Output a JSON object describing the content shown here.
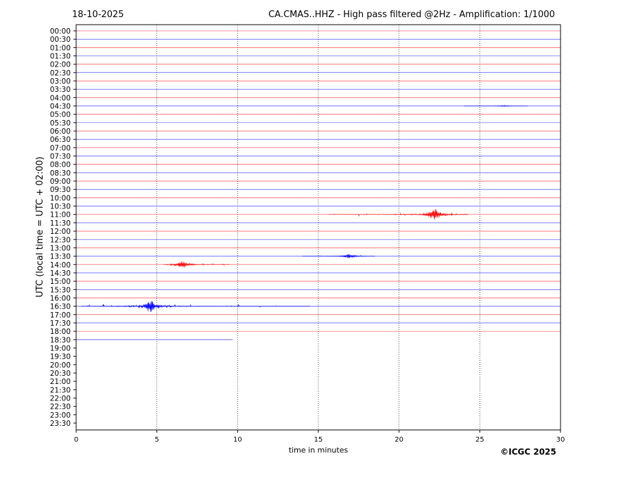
{
  "chart_data": {
    "type": "helicorder",
    "date": "18-10-2025",
    "title": "CA.CMAS..HHZ - High pass filtered @2Hz - Amplification: 1/1000",
    "xlabel": "time in minutes",
    "ylabel": "UTC (local time = UTC + 02:00)",
    "credit": "©ICGC 2025",
    "xlim": [
      0,
      30
    ],
    "xticks": [
      0,
      5,
      10,
      15,
      20,
      25,
      30
    ],
    "grid": true,
    "colors": [
      "#ff0000",
      "#0000ff"
    ],
    "rows": [
      "00:00",
      "00:30",
      "01:00",
      "01:30",
      "02:00",
      "02:30",
      "03:00",
      "03:30",
      "04:00",
      "04:30",
      "05:00",
      "05:30",
      "06:00",
      "06:30",
      "07:00",
      "07:30",
      "08:00",
      "08:30",
      "09:00",
      "09:30",
      "10:00",
      "10:30",
      "11:00",
      "11:30",
      "12:00",
      "12:30",
      "13:00",
      "13:30",
      "14:00",
      "14:30",
      "15:00",
      "15:30",
      "16:00",
      "16:30",
      "17:00",
      "17:30",
      "18:00",
      "18:30",
      "19:00",
      "19:30",
      "20:00",
      "20:30",
      "21:00",
      "21:30",
      "22:00",
      "22:30",
      "23:00",
      "23:30"
    ],
    "last_row": 37,
    "last_minute": 9.7,
    "events": [
      {
        "row": 9,
        "start": 24,
        "end": 28,
        "peak": 26.5,
        "amplitude": 0.08
      },
      {
        "row": 22,
        "start": 15.6,
        "end": 24.3,
        "peak": 22.2,
        "amplitude": 0.7
      },
      {
        "row": 27,
        "start": 14,
        "end": 18.5,
        "peak": 16.9,
        "amplitude": 0.3
      },
      {
        "row": 28,
        "start": 5.4,
        "end": 9.5,
        "peak": 6.6,
        "amplitude": 0.45
      },
      {
        "row": 33,
        "start": 0.3,
        "end": 14.5,
        "peak": 4.6,
        "amplitude": 0.85
      }
    ]
  }
}
